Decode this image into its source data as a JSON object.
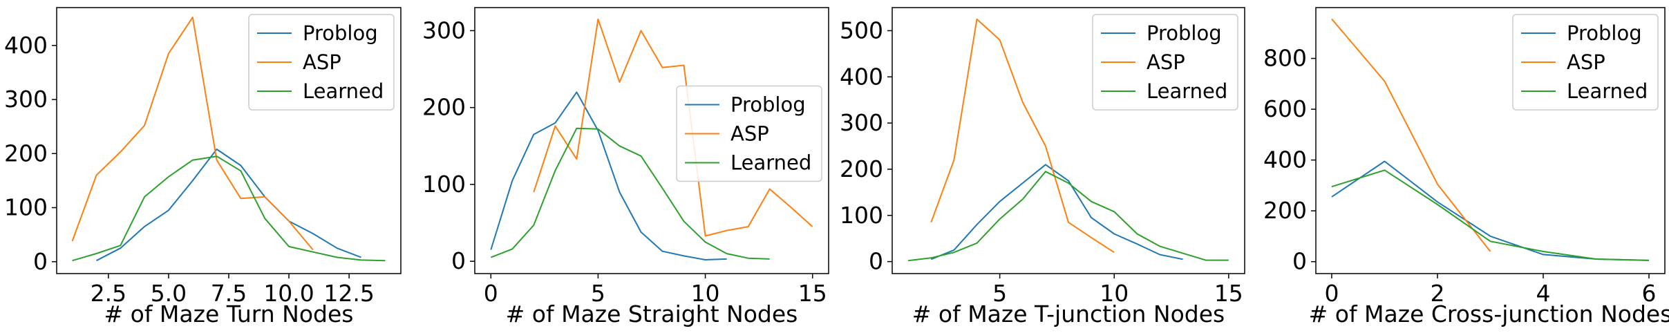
{
  "colors": {
    "Problog": "#1f77b4",
    "ASP": "#ff7f0e",
    "Learned": "#2ca02c"
  },
  "chart_data": [
    {
      "type": "line",
      "title": "",
      "xlabel": "# of Maze Turn Nodes",
      "ylabel": "",
      "xlim": [
        0.35,
        14.65
      ],
      "ylim": [
        -22,
        470
      ],
      "xticks": [
        2.5,
        5.0,
        7.5,
        10.0,
        12.5
      ],
      "xtick_labels": [
        "2.5",
        "5.0",
        "7.5",
        "10.0",
        "12.5"
      ],
      "yticks": [
        0,
        100,
        200,
        300,
        400
      ],
      "ytick_labels": [
        "0",
        "100",
        "200",
        "300",
        "400"
      ],
      "legend_position": "top-right",
      "series": [
        {
          "name": "Problog",
          "x": [
            2,
            3,
            4,
            5,
            6,
            7,
            8,
            9,
            10,
            11,
            12,
            13
          ],
          "y": [
            2,
            25,
            65,
            95,
            150,
            208,
            178,
            120,
            75,
            52,
            25,
            8
          ]
        },
        {
          "name": "ASP",
          "x": [
            1,
            2,
            3,
            4,
            5,
            6,
            7,
            8,
            9,
            10,
            11
          ],
          "y": [
            38,
            160,
            203,
            252,
            385,
            452,
            188,
            117,
            120,
            75,
            22
          ]
        },
        {
          "name": "Learned",
          "x": [
            1,
            2,
            3,
            4,
            5,
            6,
            7,
            8,
            9,
            10,
            11,
            12,
            13,
            14
          ],
          "y": [
            2,
            15,
            30,
            120,
            157,
            188,
            195,
            168,
            80,
            28,
            18,
            8,
            3,
            2
          ]
        }
      ]
    },
    {
      "type": "line",
      "title": "",
      "xlabel": "# of Maze Straight Nodes",
      "ylabel": "",
      "xlim": [
        -0.75,
        15.75
      ],
      "ylim": [
        -16,
        330
      ],
      "xticks": [
        0,
        5,
        10,
        15
      ],
      "xtick_labels": [
        "0",
        "5",
        "10",
        "15"
      ],
      "yticks": [
        0,
        100,
        200,
        300
      ],
      "ytick_labels": [
        "0",
        "100",
        "200",
        "300"
      ],
      "legend_position": "center-right",
      "series": [
        {
          "name": "Problog",
          "x": [
            0,
            1,
            2,
            3,
            4,
            5,
            6,
            7,
            8,
            9,
            10,
            11
          ],
          "y": [
            15,
            105,
            165,
            180,
            220,
            170,
            90,
            38,
            13,
            7,
            2,
            3
          ]
        },
        {
          "name": "ASP",
          "x": [
            2,
            3,
            4,
            5,
            6,
            7,
            8,
            9,
            10,
            11,
            12,
            13,
            14,
            15
          ],
          "y": [
            90,
            176,
            133,
            315,
            233,
            300,
            252,
            255,
            33,
            40,
            45,
            94,
            70,
            45
          ]
        },
        {
          "name": "Learned",
          "x": [
            0,
            1,
            2,
            3,
            4,
            5,
            6,
            7,
            8,
            9,
            10,
            11,
            12,
            13
          ],
          "y": [
            5,
            16,
            47,
            118,
            173,
            172,
            150,
            137,
            95,
            52,
            25,
            10,
            4,
            3
          ]
        }
      ]
    },
    {
      "type": "line",
      "title": "",
      "xlabel": "# of Maze T-junction Nodes",
      "ylabel": "",
      "xlim": [
        0.3,
        15.7
      ],
      "ylim": [
        -26,
        550
      ],
      "xticks": [
        5,
        10,
        15
      ],
      "xtick_labels": [
        "5",
        "10",
        "15"
      ],
      "yticks": [
        0,
        100,
        200,
        300,
        400,
        500
      ],
      "ytick_labels": [
        "0",
        "100",
        "200",
        "300",
        "400",
        "500"
      ],
      "legend_position": "top-right",
      "series": [
        {
          "name": "Problog",
          "x": [
            2,
            3,
            4,
            5,
            6,
            7,
            8,
            9,
            10,
            11,
            12,
            13
          ],
          "y": [
            5,
            25,
            80,
            130,
            170,
            210,
            175,
            95,
            60,
            38,
            15,
            5
          ]
        },
        {
          "name": "ASP",
          "x": [
            2,
            3,
            4,
            5,
            6,
            7,
            8,
            9,
            10
          ],
          "y": [
            85,
            220,
            525,
            480,
            345,
            250,
            85,
            52,
            20
          ]
        },
        {
          "name": "Learned",
          "x": [
            1,
            2,
            3,
            4,
            5,
            6,
            7,
            8,
            9,
            10,
            11,
            12,
            13,
            14,
            15
          ],
          "y": [
            2,
            8,
            20,
            40,
            92,
            135,
            195,
            170,
            130,
            108,
            60,
            33,
            18,
            3,
            3
          ]
        }
      ]
    },
    {
      "type": "line",
      "title": "",
      "xlabel": "# of Maze Cross-junction Nodes",
      "ylabel": "",
      "xlim": [
        -0.3,
        6.3
      ],
      "ylim": [
        -47,
        1000
      ],
      "xticks": [
        0,
        2,
        4,
        6
      ],
      "xtick_labels": [
        "0",
        "2",
        "4",
        "6"
      ],
      "yticks": [
        0,
        200,
        400,
        600,
        800
      ],
      "ytick_labels": [
        "0",
        "200",
        "400",
        "600",
        "800"
      ],
      "legend_position": "top-right",
      "series": [
        {
          "name": "Problog",
          "x": [
            0,
            1,
            2,
            3,
            4,
            5,
            6
          ],
          "y": [
            255,
            395,
            235,
            100,
            28,
            10,
            5
          ]
        },
        {
          "name": "ASP",
          "x": [
            0,
            1,
            2,
            3
          ],
          "y": [
            955,
            710,
            305,
            40
          ]
        },
        {
          "name": "Learned",
          "x": [
            0,
            1,
            2,
            3,
            4,
            5,
            6
          ],
          "y": [
            295,
            360,
            225,
            80,
            40,
            10,
            5
          ]
        }
      ]
    }
  ]
}
